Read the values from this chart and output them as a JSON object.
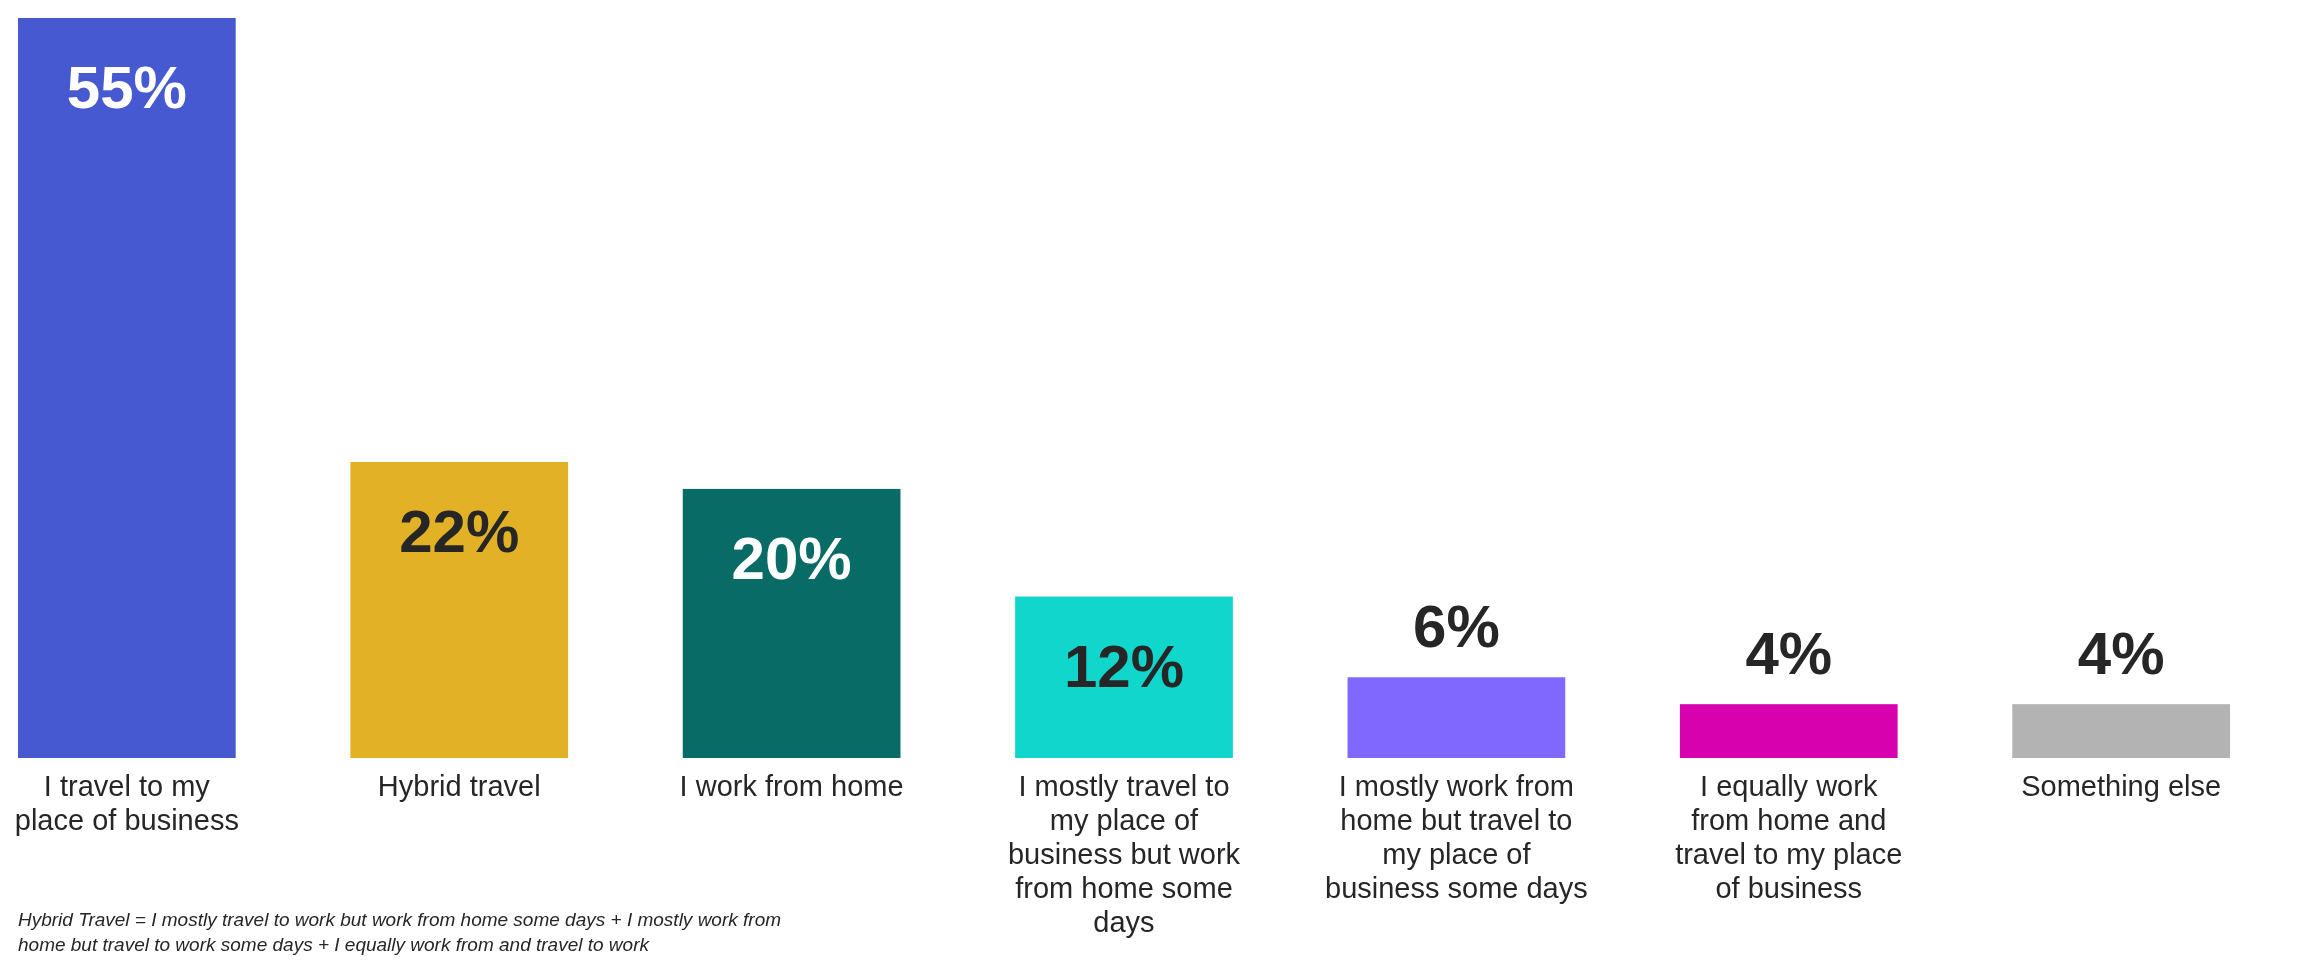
{
  "chart_data": {
    "type": "bar",
    "categories": [
      "I travel to my place of business",
      "Hybrid travel",
      "I work from home",
      "I mostly travel to my place of business but work from home some days",
      "I mostly work from home but travel to my place of business some days",
      "I equally work from home and travel to my place of business",
      "Something else"
    ],
    "values": [
      55,
      22,
      20,
      12,
      6,
      4,
      4
    ],
    "value_labels": [
      "55%",
      "22%",
      "20%",
      "12%",
      "6%",
      "4%",
      "4%"
    ],
    "colors": [
      "#4759d0",
      "#e2b125",
      "#086b66",
      "#10d6cc",
      "#8068fe",
      "#d702ae",
      "#b3b3b3"
    ],
    "annotations": [
      "Hybrid Travel = I mostly travel to work but work from home some days + I mostly work from home but travel to work some days + I equally work from and travel to work"
    ]
  }
}
